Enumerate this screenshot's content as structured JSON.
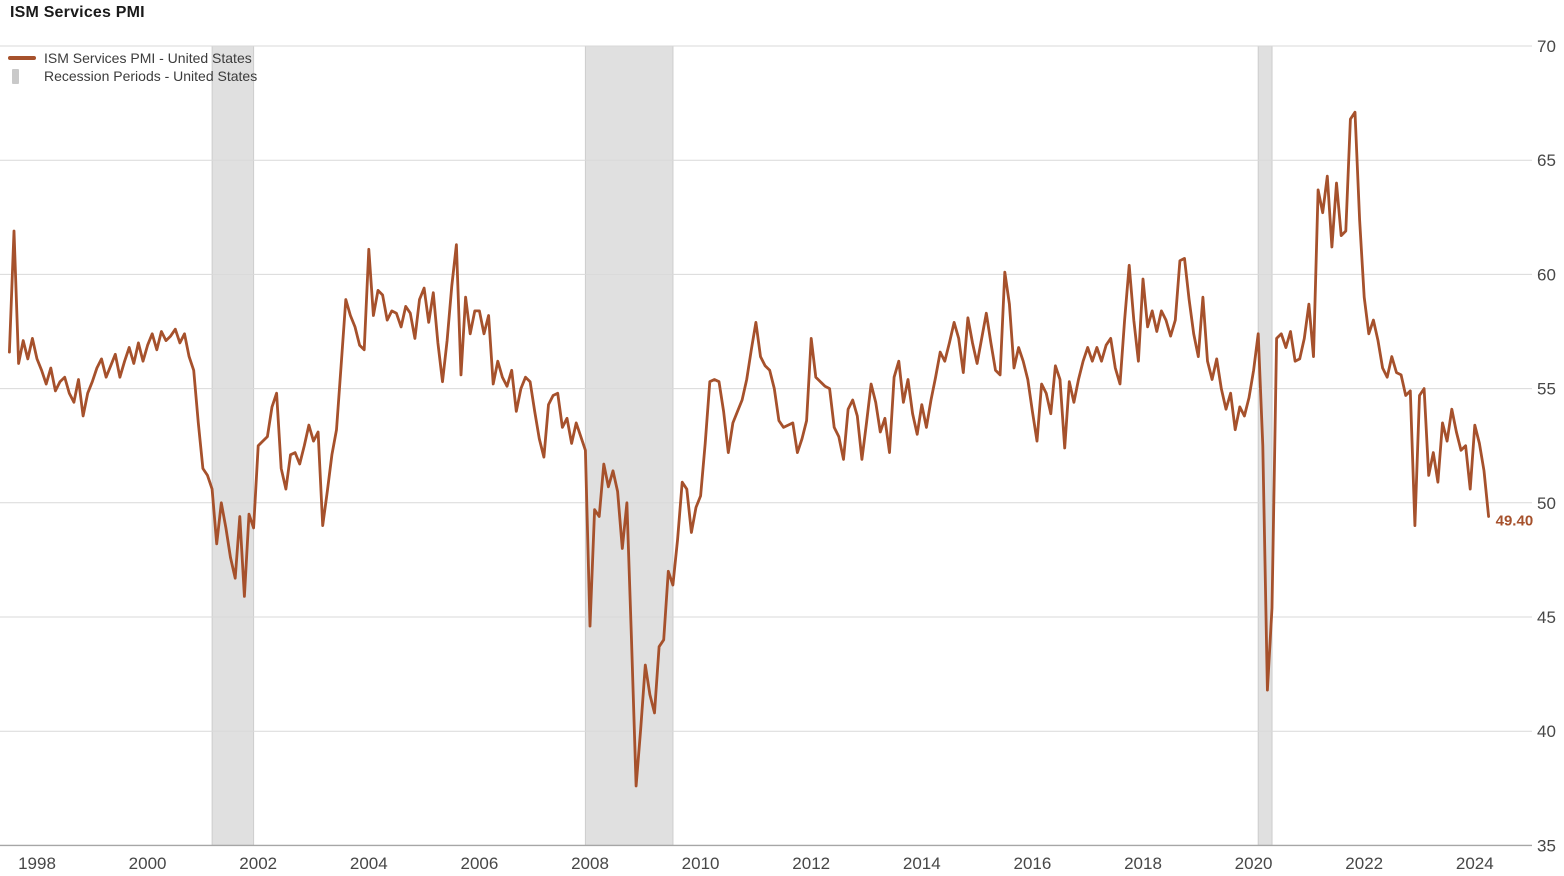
{
  "title": "ISM Services PMI",
  "legend": [
    {
      "label": "ISM Services PMI - United States",
      "type": "line"
    },
    {
      "label": "Recession Periods - United States",
      "type": "band"
    }
  ],
  "last_value_label": "49.40",
  "colors": {
    "line": "#A6512C",
    "recession_fill": "#E0E0E0",
    "recession_border": "#CDCDCD",
    "grid": "#D9D9D9",
    "axis_line": "#A6A6A6",
    "axis_text": "#474747",
    "title_text": "#1A1A1A",
    "legend_text": "#3C3C3C",
    "background": "#FFFFFF"
  },
  "chart_data": {
    "type": "line",
    "title": "ISM Services PMI",
    "grid": "horizontal",
    "legend_position": "top-left",
    "y_axis": {
      "position": "right",
      "range": [
        35,
        70
      ],
      "ticks": [
        70,
        65,
        60,
        55,
        50,
        45,
        40,
        35
      ]
    },
    "x_axis": {
      "tick_labels": [
        "1998",
        "2000",
        "2002",
        "2004",
        "2006",
        "2008",
        "2010",
        "2012",
        "2014",
        "2016",
        "2018",
        "2020",
        "2022",
        "2024"
      ]
    },
    "recession_periods": [
      {
        "start": "2001-03",
        "end": "2001-11"
      },
      {
        "start": "2007-12",
        "end": "2009-06"
      },
      {
        "start": "2020-02",
        "end": "2020-04"
      }
    ],
    "series": [
      {
        "name": "ISM Services PMI - United States",
        "frequency": "monthly",
        "start": "1997-07",
        "end": "2024-04",
        "last_value": 49.4,
        "values": [
          56.6,
          61.9,
          56.1,
          57.1,
          56.3,
          57.2,
          56.3,
          55.8,
          55.2,
          55.9,
          54.9,
          55.3,
          55.5,
          54.8,
          54.4,
          55.4,
          53.8,
          54.8,
          55.3,
          55.9,
          56.3,
          55.5,
          56.0,
          56.5,
          55.5,
          56.2,
          56.8,
          56.1,
          57.0,
          56.2,
          56.9,
          57.4,
          56.7,
          57.5,
          57.1,
          57.3,
          57.6,
          57.0,
          57.4,
          56.4,
          55.8,
          53.5,
          51.5,
          51.2,
          50.6,
          48.2,
          50.0,
          48.9,
          47.6,
          46.7,
          49.4,
          45.9,
          49.5,
          48.9,
          52.5,
          52.7,
          52.9,
          54.2,
          54.8,
          51.5,
          50.6,
          52.1,
          52.2,
          51.7,
          52.5,
          53.4,
          52.7,
          53.1,
          49.0,
          50.5,
          52.1,
          53.2,
          56.0,
          58.9,
          58.2,
          57.7,
          56.9,
          56.7,
          61.1,
          58.2,
          59.3,
          59.1,
          58.0,
          58.4,
          58.3,
          57.7,
          58.6,
          58.3,
          57.2,
          58.9,
          59.4,
          57.9,
          59.2,
          57.0,
          55.3,
          57.1,
          59.5,
          61.3,
          55.6,
          59.0,
          57.4,
          58.4,
          58.4,
          57.4,
          58.2,
          55.2,
          56.2,
          55.5,
          55.1,
          55.8,
          54.0,
          55.0,
          55.5,
          55.3,
          54.0,
          52.8,
          52.0,
          54.3,
          54.7,
          54.8,
          53.3,
          53.7,
          52.6,
          53.5,
          52.9,
          52.3,
          44.6,
          49.7,
          49.4,
          51.7,
          50.7,
          51.4,
          50.5,
          48.0,
          50.0,
          44.0,
          37.6,
          40.1,
          42.9,
          41.6,
          40.8,
          43.7,
          44.0,
          47.0,
          46.4,
          48.4,
          50.9,
          50.6,
          48.7,
          49.8,
          50.3,
          52.6,
          55.3,
          55.4,
          55.3,
          54.0,
          52.2,
          53.5,
          54.0,
          54.5,
          55.4,
          56.7,
          57.9,
          56.4,
          56.0,
          55.8,
          55.0,
          53.6,
          53.3,
          53.4,
          53.5,
          52.2,
          52.8,
          53.6,
          57.2,
          55.5,
          55.3,
          55.1,
          55.0,
          53.3,
          52.9,
          51.9,
          54.1,
          54.5,
          53.8,
          51.9,
          53.5,
          55.2,
          54.4,
          53.1,
          53.7,
          52.2,
          55.5,
          56.2,
          54.4,
          55.4,
          53.9,
          53.0,
          54.3,
          53.3,
          54.5,
          55.5,
          56.6,
          56.2,
          57.0,
          57.9,
          57.2,
          55.7,
          58.1,
          57.0,
          56.1,
          57.2,
          58.3,
          57.0,
          55.8,
          55.6,
          60.1,
          58.7,
          55.9,
          56.8,
          56.2,
          55.4,
          54.0,
          52.7,
          55.2,
          54.8,
          53.9,
          56.0,
          55.4,
          52.4,
          55.3,
          54.4,
          55.4,
          56.2,
          56.8,
          56.2,
          56.8,
          56.2,
          56.9,
          57.2,
          55.9,
          55.2,
          58.0,
          60.4,
          58.0,
          56.2,
          59.8,
          57.7,
          58.4,
          57.5,
          58.4,
          58.0,
          57.3,
          58.0,
          60.6,
          60.7,
          58.9,
          57.4,
          56.4,
          59.0,
          56.2,
          55.4,
          56.3,
          55.0,
          54.1,
          54.8,
          53.2,
          54.2,
          53.8,
          54.6,
          55.8,
          57.4,
          52.5,
          41.8,
          45.4,
          57.2,
          57.4,
          56.8,
          57.5,
          56.2,
          56.3,
          57.2,
          58.7,
          56.4,
          63.7,
          62.7,
          64.3,
          61.2,
          64.0,
          61.7,
          61.9,
          66.8,
          67.1,
          62.4,
          59.0,
          57.4,
          58.0,
          57.1,
          55.9,
          55.5,
          56.4,
          55.7,
          55.6,
          54.7,
          54.9,
          49.0,
          54.7,
          55.0,
          51.2,
          52.2,
          50.9,
          53.5,
          52.7,
          54.1,
          53.1,
          52.3,
          52.5,
          50.6,
          53.4,
          52.6,
          51.4,
          49.4
        ]
      }
    ],
    "annotations": [
      {
        "text": "49.40",
        "attached_to": "last-point"
      }
    ]
  }
}
